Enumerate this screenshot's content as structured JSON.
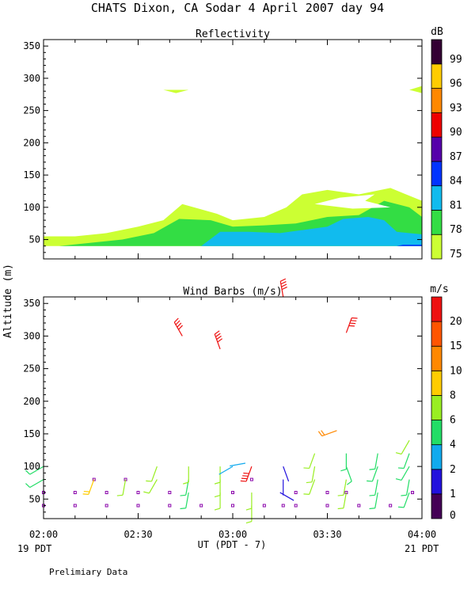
{
  "page": {
    "title": "CHATS Dixon, CA  Sodar   4 April 2007  day  94",
    "y_axis_label": "Altitude (m)",
    "x_axis_label": "UT  (PDT - 7)",
    "left_date": "19 PDT",
    "right_date": "21 PDT",
    "footnote": "Prelimiary Data"
  },
  "chart_data": [
    {
      "type": "heatmap",
      "title": "Reflectivity",
      "xlabel": "UT  (PDT - 7)",
      "ylabel": "Altitude (m)",
      "x_ticks": [
        "02:00",
        "02:30",
        "03:00",
        "03:30",
        "04:00"
      ],
      "x_range": [
        "02:00",
        "04:00"
      ],
      "ylim": [
        20,
        360
      ],
      "y_ticks": [
        50,
        100,
        150,
        200,
        250,
        300,
        350
      ],
      "colorbar": {
        "unit": "dB",
        "levels": [
          75,
          78,
          81,
          84,
          87,
          90,
          93,
          96,
          99
        ],
        "colors": [
          "#ccff33",
          "#33dd44",
          "#11bbee",
          "#0033ff",
          "#5500aa",
          "#ee0000",
          "#ff8800",
          "#ffcc00",
          "#330033"
        ]
      },
      "regions": [
        {
          "level": 75,
          "points": [
            [
              "02:00",
              40
            ],
            [
              "02:00",
              55
            ],
            [
              "02:10",
              55
            ],
            [
              "02:20",
              60
            ],
            [
              "02:30",
              70
            ],
            [
              "02:38",
              80
            ],
            [
              "02:44",
              105
            ],
            [
              "02:55",
              90
            ],
            [
              "03:00",
              80
            ],
            [
              "03:10",
              85
            ],
            [
              "03:17",
              100
            ],
            [
              "03:22",
              120
            ],
            [
              "03:30",
              127
            ],
            [
              "03:40",
              120
            ],
            [
              "03:50",
              130
            ],
            [
              "04:00",
              110
            ],
            [
              "04:00",
              40
            ]
          ]
        },
        {
          "level": 78,
          "points": [
            [
              "02:05",
              40
            ],
            [
              "02:15",
              45
            ],
            [
              "02:25",
              50
            ],
            [
              "02:35",
              60
            ],
            [
              "02:43",
              82
            ],
            [
              "02:53",
              80
            ],
            [
              "03:00",
              70
            ],
            [
              "03:10",
              72
            ],
            [
              "03:20",
              75
            ],
            [
              "03:30",
              85
            ],
            [
              "03:40",
              88
            ],
            [
              "03:48",
              110
            ],
            [
              "03:56",
              100
            ],
            [
              "04:00",
              85
            ],
            [
              "04:00",
              40
            ]
          ]
        },
        {
          "level": 81,
          "points": [
            [
              "02:50",
              40
            ],
            [
              "02:56",
              62
            ],
            [
              "03:05",
              62
            ],
            [
              "03:15",
              60
            ],
            [
              "03:30",
              70
            ],
            [
              "03:35",
              82
            ],
            [
              "03:43",
              85
            ],
            [
              "03:48",
              80
            ],
            [
              "03:52",
              62
            ],
            [
              "04:00",
              58
            ],
            [
              "04:00",
              40
            ]
          ]
        },
        {
          "level": 84,
          "points": [
            [
              "03:52",
              40
            ],
            [
              "03:54",
              42
            ],
            [
              "04:00",
              42
            ],
            [
              "04:00",
              40
            ]
          ]
        },
        {
          "level": 75,
          "points": [
            [
              "02:38",
              282
            ],
            [
              "02:42",
              277
            ],
            [
              "02:46",
              282
            ]
          ]
        },
        {
          "level": 75,
          "points": [
            [
              "03:56",
              282
            ],
            [
              "04:00",
              277
            ],
            [
              "04:00",
              288
            ]
          ]
        }
      ],
      "clear_areas": [
        {
          "points": [
            [
              "03:26",
              105
            ],
            [
              "03:34",
              115
            ],
            [
              "03:45",
              120
            ],
            [
              "03:42",
              110
            ],
            [
              "03:50",
              100
            ],
            [
              "03:38",
              98
            ]
          ]
        }
      ]
    },
    {
      "type": "scatter",
      "title": "Wind Barbs (m/s)",
      "xlabel": "UT  (PDT - 7)",
      "ylabel": "Altitude (m)",
      "x_ticks": [
        "02:00",
        "02:30",
        "03:00",
        "03:30",
        "04:00"
      ],
      "x_range": [
        "02:00",
        "04:00"
      ],
      "ylim": [
        20,
        360
      ],
      "y_ticks": [
        50,
        100,
        150,
        200,
        250,
        300,
        350
      ],
      "colorbar": {
        "unit": "m/s",
        "tick_labels": [
          0,
          1,
          2,
          4,
          6,
          8,
          10,
          15,
          20
        ],
        "bands": [
          {
            "from": 0,
            "to": 1,
            "color": "#440055"
          },
          {
            "from": 1,
            "to": 2,
            "color": "#2211dd"
          },
          {
            "from": 2,
            "to": 4,
            "color": "#11aaee"
          },
          {
            "from": 4,
            "to": 6,
            "color": "#22dd66"
          },
          {
            "from": 6,
            "to": 8,
            "color": "#99ee22"
          },
          {
            "from": 8,
            "to": 10,
            "color": "#ffcc00"
          },
          {
            "from": 10,
            "to": 15,
            "color": "#ff8800"
          },
          {
            "from": 15,
            "to": 20,
            "color": "#ff5500"
          },
          {
            "from": 20,
            "to": 25,
            "color": "#ee1111"
          }
        ]
      },
      "calm_markers": [
        {
          "x": "02:00",
          "y": [
            40,
            60
          ]
        },
        {
          "x": "02:10",
          "y": [
            40,
            60
          ]
        },
        {
          "x": "02:16",
          "y": [
            80
          ]
        },
        {
          "x": "02:20",
          "y": [
            40,
            60
          ]
        },
        {
          "x": "02:26",
          "y": [
            80
          ]
        },
        {
          "x": "02:30",
          "y": [
            40,
            60
          ]
        },
        {
          "x": "02:40",
          "y": [
            40,
            60
          ]
        },
        {
          "x": "02:50",
          "y": [
            40
          ]
        },
        {
          "x": "03:00",
          "y": [
            40,
            60
          ]
        },
        {
          "x": "03:06",
          "y": [
            80
          ]
        },
        {
          "x": "03:10",
          "y": [
            40
          ]
        },
        {
          "x": "03:16",
          "y": [
            40
          ]
        },
        {
          "x": "03:20",
          "y": [
            40,
            60
          ]
        },
        {
          "x": "03:30",
          "y": [
            40,
            60
          ]
        },
        {
          "x": "03:36",
          "y": [
            60
          ]
        },
        {
          "x": "03:40",
          "y": [
            40
          ]
        },
        {
          "x": "03:50",
          "y": [
            40
          ]
        },
        {
          "x": "03:57",
          "y": [
            60
          ]
        }
      ],
      "barbs": [
        {
          "x": "02:00",
          "y": 80,
          "speed": 4,
          "dir": 240
        },
        {
          "x": "02:00",
          "y": 100,
          "speed": 4,
          "dir": 240
        },
        {
          "x": "02:16",
          "y": 80,
          "speed": 8,
          "dir": 200
        },
        {
          "x": "02:26",
          "y": 80,
          "speed": 6,
          "dir": 190
        },
        {
          "x": "02:36",
          "y": 80,
          "speed": 6,
          "dir": 210
        },
        {
          "x": "02:36",
          "y": 100,
          "speed": 6,
          "dir": 200
        },
        {
          "x": "02:46",
          "y": 60,
          "speed": 4,
          "dir": 190
        },
        {
          "x": "02:46",
          "y": 80,
          "speed": 4,
          "dir": 190
        },
        {
          "x": "02:46",
          "y": 100,
          "speed": 6,
          "dir": 180
        },
        {
          "x": "02:56",
          "y": 60,
          "speed": 6,
          "dir": 180
        },
        {
          "x": "02:56",
          "y": 80,
          "speed": 6,
          "dir": 180
        },
        {
          "x": "02:56",
          "y": 100,
          "speed": 6,
          "dir": 180
        },
        {
          "x": "03:00",
          "y": 100,
          "speed": 2,
          "dir": 240
        },
        {
          "x": "03:06",
          "y": 40,
          "speed": 6,
          "dir": 180
        },
        {
          "x": "03:06",
          "y": 60,
          "speed": 6,
          "dir": 180
        },
        {
          "x": "03:06",
          "y": 100,
          "speed": 20,
          "dir": 200
        },
        {
          "x": "03:04",
          "y": 105,
          "speed": 2,
          "dir": 260
        },
        {
          "x": "03:16",
          "y": 80,
          "speed": 1,
          "dir": 180
        },
        {
          "x": "03:16",
          "y": 100,
          "speed": 1,
          "dir": 160
        },
        {
          "x": "03:15",
          "y": 60,
          "speed": 1,
          "dir": 120
        },
        {
          "x": "03:26",
          "y": 80,
          "speed": 6,
          "dir": 200
        },
        {
          "x": "03:26",
          "y": 100,
          "speed": 6,
          "dir": 190
        },
        {
          "x": "03:26",
          "y": 120,
          "speed": 6,
          "dir": 200
        },
        {
          "x": "03:36",
          "y": 60,
          "speed": 6,
          "dir": 190
        },
        {
          "x": "03:36",
          "y": 80,
          "speed": 6,
          "dir": 190
        },
        {
          "x": "03:36",
          "y": 100,
          "speed": 4,
          "dir": 160
        },
        {
          "x": "03:36",
          "y": 120,
          "speed": 4,
          "dir": 180
        },
        {
          "x": "03:33",
          "y": 155,
          "speed": 10,
          "dir": 250
        },
        {
          "x": "03:46",
          "y": 60,
          "speed": 4,
          "dir": 190
        },
        {
          "x": "03:46",
          "y": 80,
          "speed": 4,
          "dir": 190
        },
        {
          "x": "03:46",
          "y": 100,
          "speed": 4,
          "dir": 200
        },
        {
          "x": "03:46",
          "y": 120,
          "speed": 4,
          "dir": 190
        },
        {
          "x": "03:56",
          "y": 60,
          "speed": 4,
          "dir": 200
        },
        {
          "x": "03:56",
          "y": 80,
          "speed": 4,
          "dir": 190
        },
        {
          "x": "03:56",
          "y": 100,
          "speed": 4,
          "dir": 210
        },
        {
          "x": "03:56",
          "y": 120,
          "speed": 4,
          "dir": 200
        },
        {
          "x": "03:56",
          "y": 140,
          "speed": 6,
          "dir": 210
        },
        {
          "x": "02:44",
          "y": 300,
          "speed": 20,
          "dir": 330
        },
        {
          "x": "02:56",
          "y": 280,
          "speed": 20,
          "dir": 340
        },
        {
          "x": "03:16",
          "y": 360,
          "speed": 20,
          "dir": 350
        },
        {
          "x": "03:36",
          "y": 305,
          "speed": 20,
          "dir": 20
        }
      ]
    }
  ]
}
